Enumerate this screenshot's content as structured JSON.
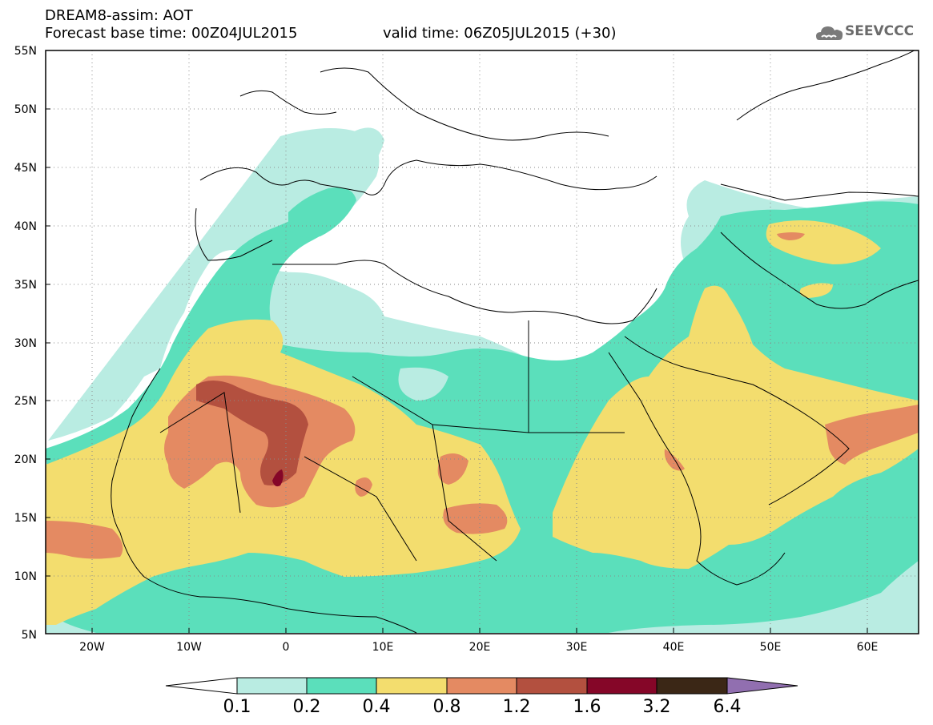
{
  "header": {
    "model_product": "DREAM8-assim: AOT",
    "forecast_base": "Forecast base time: 00Z04JUL2015",
    "valid_time": "valid time: 06Z05JUL2015 (+30)"
  },
  "logo": {
    "text": "SEEVCCC",
    "icon": "cloud-icon"
  },
  "map": {
    "lat_labels": [
      "55N",
      "50N",
      "45N",
      "40N",
      "35N",
      "30N",
      "25N",
      "20N",
      "15N",
      "10N",
      "5N"
    ],
    "lon_labels": [
      "20W",
      "10W",
      "0",
      "10E",
      "20E",
      "30E",
      "40E",
      "50E",
      "60E"
    ],
    "extent": {
      "lon": [
        -25,
        65
      ],
      "lat": [
        5,
        55
      ]
    },
    "grid": "dotted"
  },
  "colorbar": {
    "labels": [
      "0.1",
      "0.2",
      "0.4",
      "0.8",
      "1.2",
      "1.6",
      "3.2",
      "6.4"
    ],
    "colors": [
      "#ffffff",
      "#b9ece2",
      "#5bdfbb",
      "#f3dd6e",
      "#e48a62",
      "#b3503f",
      "#850628",
      "#3b2716",
      "#916fb0"
    ]
  }
}
